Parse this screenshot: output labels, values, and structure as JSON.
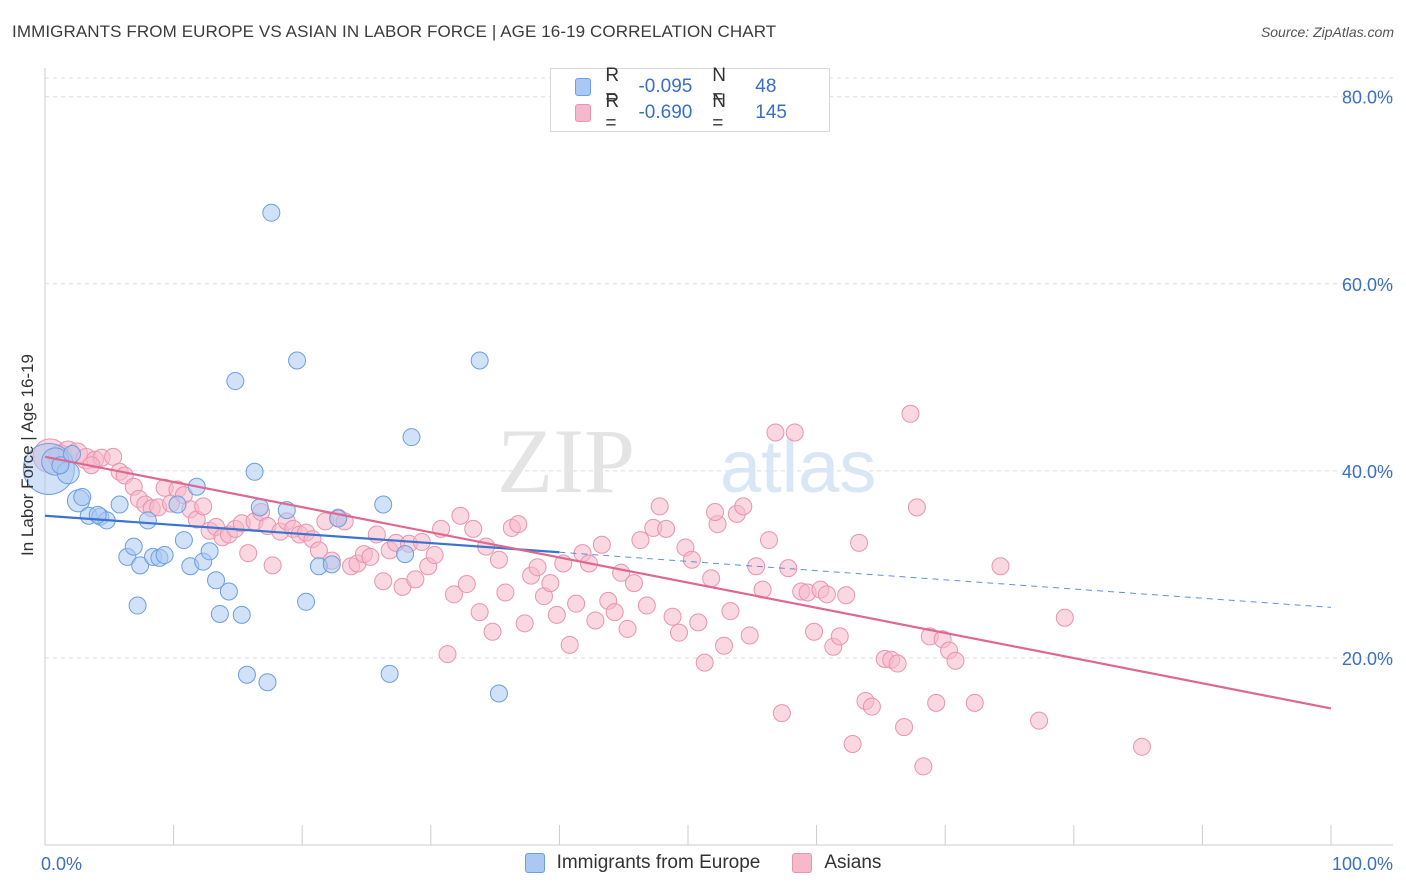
{
  "header": {
    "title": "IMMIGRANTS FROM EUROPE VS ASIAN IN LABOR FORCE | AGE 16-19 CORRELATION CHART",
    "source": "Source: ZipAtlas.com"
  },
  "watermark": {
    "zip": "ZIP",
    "atlas": "atlas"
  },
  "legend": {
    "rows": [
      {
        "r_label": "R = ",
        "r_value": "-0.095",
        "n_label": "N = ",
        "n_value": "48",
        "color": "#a9c8f2"
      },
      {
        "r_label": "R = ",
        "r_value": "-0.690",
        "n_label": "N = ",
        "n_value": "145",
        "color": "#f6b8cb"
      }
    ]
  },
  "bottom_legend": {
    "items": [
      {
        "label": "Immigrants from Europe",
        "color": "#a9c8f2"
      },
      {
        "label": "Asians",
        "color": "#f6b8cb"
      }
    ]
  },
  "chart_data": {
    "type": "scatter",
    "title": "IMMIGRANTS FROM EUROPE VS ASIAN IN LABOR FORCE | AGE 16-19 CORRELATION CHART",
    "ylabel": "In Labor Force | Age 16-19",
    "xlim": [
      0,
      100
    ],
    "ylim": [
      0,
      82
    ],
    "x_tick_labels": [
      "0.0%",
      "100.0%"
    ],
    "y_ticks": [
      20,
      40,
      60,
      80
    ],
    "y_tick_labels": [
      "20.0%",
      "40.0%",
      "60.0%",
      "80.0%"
    ],
    "grid": true,
    "legend_position": "top-center",
    "colors": {
      "europe": "#3a74d0",
      "asians": "#e0678f",
      "tick_label": "#3a6fc4"
    },
    "series": [
      {
        "name": "Immigrants from Europe",
        "color": "#a9c8f2",
        "stroke": "#6c9ee0",
        "trend": {
          "x": [
            0,
            40
          ],
          "y": [
            35.2,
            31.3
          ]
        },
        "trend_dashed": {
          "x": [
            40,
            100
          ],
          "y": [
            31.3,
            25.4
          ]
        },
        "points": [
          [
            0.3,
            40.2,
            3
          ],
          [
            0.8,
            41.0,
            1.6
          ],
          [
            1.8,
            39.8,
            1.3
          ],
          [
            2.6,
            36.8,
            1.3
          ],
          [
            2.9,
            37.2,
            1
          ],
          [
            3.4,
            35.2,
            1
          ],
          [
            4.3,
            35.1,
            1
          ],
          [
            4.8,
            34.7,
            1
          ],
          [
            5.8,
            36.4,
            1
          ],
          [
            6.4,
            30.8,
            1
          ],
          [
            6.9,
            31.9,
            1
          ],
          [
            7.4,
            29.9,
            1
          ],
          [
            8.0,
            34.7,
            1
          ],
          [
            8.4,
            30.8,
            1
          ],
          [
            8.9,
            30.7,
            1
          ],
          [
            9.3,
            31.0,
            1
          ],
          [
            10.3,
            36.4,
            1
          ],
          [
            10.8,
            32.6,
            1
          ],
          [
            11.3,
            29.8,
            1
          ],
          [
            11.8,
            38.3,
            1
          ],
          [
            12.3,
            30.3,
            1
          ],
          [
            12.8,
            31.4,
            1
          ],
          [
            13.3,
            28.3,
            1
          ],
          [
            13.6,
            24.7,
            1
          ],
          [
            14.3,
            27.1,
            1
          ],
          [
            14.8,
            49.6,
            1
          ],
          [
            15.3,
            24.6,
            1
          ],
          [
            15.7,
            18.2,
            1
          ],
          [
            16.3,
            39.9,
            1
          ],
          [
            16.7,
            36.1,
            1
          ],
          [
            17.3,
            17.4,
            1
          ],
          [
            17.6,
            67.6,
            1
          ],
          [
            18.8,
            35.8,
            1
          ],
          [
            19.6,
            51.8,
            1
          ],
          [
            20.3,
            26.0,
            1
          ],
          [
            21.3,
            29.8,
            1
          ],
          [
            22.3,
            30.0,
            1
          ],
          [
            22.8,
            34.9,
            1
          ],
          [
            26.3,
            36.4,
            1
          ],
          [
            26.8,
            18.3,
            1
          ],
          [
            28.0,
            31.1,
            1
          ],
          [
            28.5,
            43.6,
            1
          ],
          [
            33.8,
            51.8,
            1
          ],
          [
            35.3,
            16.2,
            1
          ],
          [
            7.2,
            25.6,
            1
          ],
          [
            4.1,
            35.3,
            1
          ],
          [
            1.2,
            40.6,
            1
          ],
          [
            2.1,
            41.8,
            1
          ]
        ]
      },
      {
        "name": "Asians",
        "color": "#f6b8cb",
        "stroke": "#ea93ae",
        "trend": {
          "x": [
            0,
            100
          ],
          "y": [
            41.5,
            14.6
          ]
        },
        "points": [
          [
            0.4,
            41.6,
            2
          ],
          [
            1.2,
            41.5,
            1.4
          ],
          [
            1.8,
            42.1,
            1.2
          ],
          [
            2.5,
            41.9,
            1.2
          ],
          [
            3.2,
            41.3,
            1.2
          ],
          [
            3.9,
            41.2,
            1
          ],
          [
            4.4,
            41.4,
            1
          ],
          [
            5.3,
            41.5,
            1
          ],
          [
            5.8,
            39.9,
            1
          ],
          [
            6.2,
            39.5,
            1
          ],
          [
            6.9,
            38.3,
            1
          ],
          [
            7.3,
            37.0,
            1
          ],
          [
            7.8,
            36.4,
            1
          ],
          [
            8.3,
            36.0,
            1
          ],
          [
            8.8,
            36.1,
            1
          ],
          [
            9.3,
            38.2,
            1
          ],
          [
            9.8,
            36.5,
            1
          ],
          [
            10.3,
            38.0,
            1
          ],
          [
            10.8,
            37.4,
            1
          ],
          [
            11.3,
            35.9,
            1
          ],
          [
            11.8,
            34.8,
            1
          ],
          [
            12.3,
            36.2,
            1
          ],
          [
            12.8,
            33.6,
            1
          ],
          [
            13.3,
            34.0,
            1
          ],
          [
            13.8,
            32.9,
            1
          ],
          [
            14.3,
            33.2,
            1
          ],
          [
            14.8,
            33.8,
            1
          ],
          [
            15.3,
            34.4,
            1
          ],
          [
            15.8,
            31.2,
            1
          ],
          [
            16.3,
            34.6,
            1
          ],
          [
            16.8,
            35.6,
            1
          ],
          [
            17.3,
            34.1,
            1
          ],
          [
            17.7,
            29.9,
            1
          ],
          [
            18.3,
            33.5,
            1
          ],
          [
            18.8,
            34.6,
            1
          ],
          [
            19.3,
            33.8,
            1
          ],
          [
            19.8,
            33.2,
            1
          ],
          [
            20.3,
            33.4,
            1
          ],
          [
            20.8,
            32.7,
            1
          ],
          [
            21.3,
            31.5,
            1
          ],
          [
            21.8,
            34.6,
            1
          ],
          [
            22.3,
            30.4,
            1
          ],
          [
            22.8,
            35.0,
            1
          ],
          [
            23.3,
            34.6,
            1
          ],
          [
            23.8,
            29.8,
            1
          ],
          [
            24.3,
            30.1,
            1
          ],
          [
            24.8,
            31.1,
            1
          ],
          [
            25.3,
            30.8,
            1
          ],
          [
            25.8,
            33.2,
            1
          ],
          [
            26.3,
            28.2,
            1
          ],
          [
            26.8,
            31.5,
            1
          ],
          [
            27.3,
            32.3,
            1
          ],
          [
            27.8,
            27.6,
            1
          ],
          [
            28.3,
            32.2,
            1
          ],
          [
            28.8,
            28.4,
            1
          ],
          [
            29.3,
            32.4,
            1
          ],
          [
            29.8,
            29.8,
            1
          ],
          [
            30.3,
            31.0,
            1
          ],
          [
            30.8,
            33.8,
            1
          ],
          [
            31.3,
            20.4,
            1
          ],
          [
            31.8,
            26.8,
            1
          ],
          [
            32.3,
            35.2,
            1
          ],
          [
            32.8,
            27.9,
            1
          ],
          [
            33.3,
            33.8,
            1
          ],
          [
            33.8,
            24.9,
            1
          ],
          [
            34.3,
            31.9,
            1
          ],
          [
            34.8,
            22.8,
            1
          ],
          [
            35.3,
            30.5,
            1
          ],
          [
            35.8,
            27.0,
            1
          ],
          [
            36.3,
            33.9,
            1
          ],
          [
            36.8,
            34.3,
            1
          ],
          [
            37.3,
            23.7,
            1
          ],
          [
            37.8,
            28.8,
            1
          ],
          [
            38.3,
            29.7,
            1
          ],
          [
            38.8,
            26.6,
            1
          ],
          [
            39.3,
            28.0,
            1
          ],
          [
            39.8,
            24.6,
            1
          ],
          [
            40.3,
            30.1,
            1
          ],
          [
            40.8,
            21.4,
            1
          ],
          [
            41.3,
            25.8,
            1
          ],
          [
            41.8,
            31.2,
            1
          ],
          [
            42.3,
            30.1,
            1
          ],
          [
            42.8,
            24.0,
            1
          ],
          [
            43.3,
            32.1,
            1
          ],
          [
            43.8,
            26.1,
            1
          ],
          [
            44.3,
            24.9,
            1
          ],
          [
            44.8,
            29.1,
            1
          ],
          [
            45.3,
            23.1,
            1
          ],
          [
            45.8,
            28.0,
            1
          ],
          [
            46.3,
            32.6,
            1
          ],
          [
            46.8,
            25.6,
            1
          ],
          [
            47.3,
            33.9,
            1
          ],
          [
            47.8,
            36.2,
            1
          ],
          [
            48.3,
            33.8,
            1
          ],
          [
            48.8,
            24.4,
            1
          ],
          [
            49.3,
            22.7,
            1
          ],
          [
            49.8,
            31.8,
            1
          ],
          [
            50.3,
            30.5,
            1
          ],
          [
            50.8,
            23.8,
            1
          ],
          [
            51.3,
            19.5,
            1
          ],
          [
            51.8,
            28.5,
            1
          ],
          [
            52.3,
            34.3,
            1
          ],
          [
            52.8,
            21.3,
            1
          ],
          [
            53.3,
            25.0,
            1
          ],
          [
            53.8,
            35.4,
            1
          ],
          [
            54.3,
            36.2,
            1
          ],
          [
            54.8,
            22.4,
            1
          ],
          [
            55.3,
            29.8,
            1
          ],
          [
            55.8,
            27.3,
            1
          ],
          [
            56.3,
            32.6,
            1
          ],
          [
            56.8,
            44.1,
            1
          ],
          [
            57.3,
            14.1,
            1
          ],
          [
            57.8,
            29.6,
            1
          ],
          [
            58.3,
            44.1,
            1
          ],
          [
            58.8,
            27.1,
            1
          ],
          [
            59.3,
            27.0,
            1
          ],
          [
            59.8,
            22.8,
            1
          ],
          [
            60.3,
            27.3,
            1
          ],
          [
            60.8,
            26.8,
            1
          ],
          [
            61.3,
            21.2,
            1
          ],
          [
            61.8,
            22.3,
            1
          ],
          [
            62.3,
            26.7,
            1
          ],
          [
            62.8,
            10.8,
            1
          ],
          [
            63.3,
            32.3,
            1
          ],
          [
            63.8,
            15.4,
            1
          ],
          [
            64.3,
            14.8,
            1
          ],
          [
            65.3,
            19.9,
            1
          ],
          [
            65.8,
            19.8,
            1
          ],
          [
            66.3,
            19.4,
            1
          ],
          [
            66.8,
            12.6,
            1
          ],
          [
            67.3,
            46.1,
            1
          ],
          [
            67.8,
            36.1,
            1
          ],
          [
            68.3,
            8.4,
            1
          ],
          [
            68.8,
            22.3,
            1
          ],
          [
            69.3,
            15.2,
            1
          ],
          [
            69.8,
            22.0,
            1
          ],
          [
            70.3,
            20.8,
            1
          ],
          [
            70.8,
            19.7,
            1
          ],
          [
            72.3,
            15.2,
            1
          ],
          [
            74.3,
            29.8,
            1
          ],
          [
            77.3,
            13.3,
            1
          ],
          [
            79.3,
            24.3,
            1
          ],
          [
            85.3,
            10.5,
            1
          ],
          [
            52.1,
            35.6,
            1
          ],
          [
            3.6,
            40.6,
            1
          ]
        ]
      }
    ]
  }
}
